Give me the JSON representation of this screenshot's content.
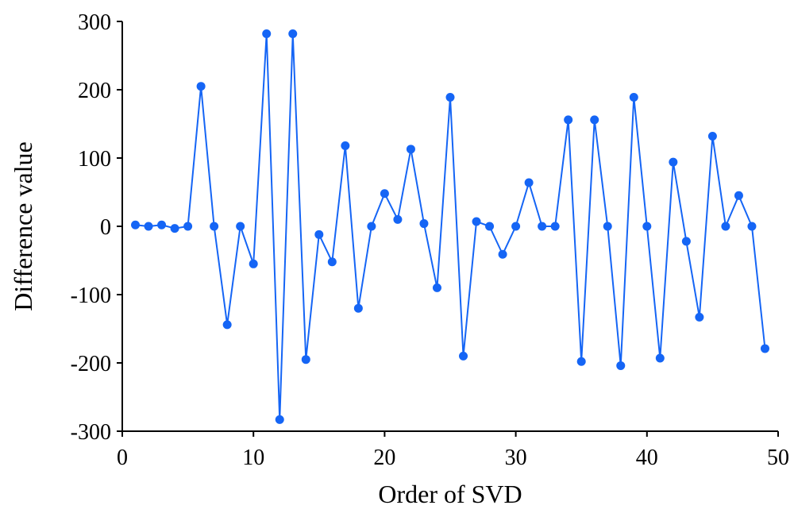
{
  "chart_data": {
    "type": "line",
    "title": "",
    "xlabel": "Order of SVD",
    "ylabel": "Difference value",
    "xlim": [
      0,
      50
    ],
    "ylim": [
      -300,
      300
    ],
    "xticks": [
      0,
      10,
      20,
      30,
      40,
      50
    ],
    "yticks": [
      -300,
      -200,
      -100,
      0,
      100,
      200,
      300
    ],
    "xtick_labels": [
      "0",
      "10",
      "20",
      "30",
      "40",
      "50"
    ],
    "ytick_labels": [
      "-300",
      "-200",
      "-100",
      "0",
      "100",
      "200",
      "300"
    ],
    "grid": false,
    "legend": "none",
    "series": [
      {
        "color": "#1565f5",
        "x": [
          1,
          2,
          3,
          4,
          5,
          6,
          7,
          8,
          9,
          10,
          11,
          12,
          13,
          14,
          15,
          16,
          17,
          18,
          19,
          20,
          21,
          22,
          23,
          24,
          25,
          26,
          27,
          28,
          29,
          30,
          31,
          32,
          33,
          34,
          35,
          36,
          37,
          38,
          39,
          40,
          41,
          42,
          43,
          44,
          45,
          46,
          47,
          48,
          49
        ],
        "values": [
          2,
          0,
          2,
          -3,
          0,
          205,
          0,
          -144,
          0,
          -55,
          282,
          -283,
          282,
          -195,
          -12,
          -52,
          118,
          -120,
          0,
          48,
          10,
          113,
          4,
          -90,
          189,
          -190,
          7,
          0,
          -41,
          0,
          64,
          0,
          0,
          156,
          -198,
          156,
          0,
          -204,
          189,
          0,
          -193,
          94,
          -22,
          -133,
          132,
          0,
          45,
          0,
          -179
        ]
      }
    ]
  }
}
